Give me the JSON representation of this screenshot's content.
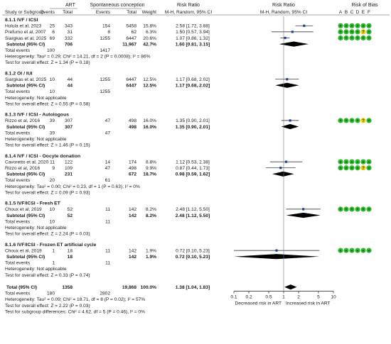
{
  "header": {
    "art": "ART",
    "spont": "Spontaneous conception",
    "rr_top": "Risk Ratio",
    "rr_top2": "Risk Ratio",
    "rob": "Risk of Bias",
    "study": "Study or Subgroup",
    "events1": "Events",
    "total1": "Total",
    "events2": "Events",
    "total2": "Total",
    "weight": "Weight",
    "mh1": "M-H, Random, 95% CI",
    "mh2": "M-H, Random, 95% CI",
    "rob_letters": [
      "A",
      "B",
      "C",
      "D",
      "E",
      "F"
    ]
  },
  "chart_data": {
    "type": "forest",
    "axis": {
      "scale": "log",
      "ticks": [
        "0.1",
        "0.2",
        "0.5",
        "1",
        "2",
        "5",
        "10"
      ],
      "tick_values": [
        0.1,
        0.2,
        0.5,
        1,
        2,
        5,
        10
      ],
      "label_left": "Decreased risk in ART",
      "label_right": "Increased risk in ART"
    },
    "colors": {
      "low": "#2eb82e",
      "unclear": "#f2d000",
      "high": "#e02020",
      "marker": "#1f3f9f",
      "diamond": "#000000"
    },
    "subgroups": [
      {
        "title": "8.1.1 IVF / ICSI",
        "studies": [
          {
            "name": "Hulula et al, 2023",
            "e1": "25",
            "t1": "343",
            "e2": "154",
            "t2": "5458",
            "weight": "15.8%",
            "ci": "2.58 [1.72, 3.88]",
            "rr": 2.58,
            "lo": 1.72,
            "hi": 3.88,
            "rob": [
              "+",
              "+",
              "+",
              "+",
              "+",
              "+"
            ]
          },
          {
            "name": "Prefumo et al, 2007",
            "e1": "6",
            "t1": "31",
            "e2": "8",
            "t2": "62",
            "weight": "6.3%",
            "ci": "1.50 [0.57, 3.94]",
            "rr": 1.5,
            "lo": 0.57,
            "hi": 3.94,
            "rob": [
              "+",
              "+",
              "+",
              "+",
              "?",
              "+"
            ]
          },
          {
            "name": "Siargkas et al, 2025",
            "e1": "69",
            "t1": "332",
            "e2": "1255",
            "t2": "6447",
            "weight": "20.6%",
            "ci": "1.07 [0.86, 1.32]",
            "rr": 1.07,
            "lo": 0.86,
            "hi": 1.32,
            "rob": [
              "+",
              "+",
              "+",
              "+",
              "+",
              "+"
            ]
          }
        ],
        "subtotal": {
          "label": "Subtotal (95% CI)",
          "t1": "706",
          "t2": "11,967",
          "weight": "42.7%",
          "ci": "1.60 [0.81, 3.15]",
          "rr": 1.6,
          "lo": 0.81,
          "hi": 3.15
        },
        "events": {
          "label": "Total events",
          "e1": "100",
          "e2": "1417"
        },
        "het": "Heterogeneity: Tau² = 0.29; Chi² = 14.21, df = 2 (P = 0.0008); I² = 86%",
        "test": "Test for overall effect: Z = 1.34 (P = 0.18)"
      },
      {
        "title": "8.1.2 OI / IUI",
        "studies": [
          {
            "name": "Siargkas et al, 2025",
            "e1": "10",
            "t1": "44",
            "e2": "1255",
            "t2": "6447",
            "weight": "12.5%",
            "ci": "1.17 [0.68, 2.02]",
            "rr": 1.17,
            "lo": 0.68,
            "hi": 2.02,
            "rob": []
          }
        ],
        "subtotal": {
          "label": "Subtotal (95% CI)",
          "t1": "44",
          "t2": "6447",
          "weight": "12.5%",
          "ci": "1.17 [0.68, 2.02]",
          "rr": 1.17,
          "lo": 0.68,
          "hi": 2.02
        },
        "events": {
          "label": "Total events",
          "e1": "10",
          "e2": "1255"
        },
        "het": "Heterogeneity: Not applicable",
        "test": "Test for overall effect: Z = 0.55 (P = 0.58)"
      },
      {
        "title": "8.1.3 IVF / ICSI - Autologous",
        "studies": [
          {
            "name": "Rizzo et al, 2016",
            "e1": "39",
            "t1": "307",
            "e2": "47",
            "t2": "498",
            "weight": "16.0%",
            "ci": "1.35 [0.90, 2.01]",
            "rr": 1.35,
            "lo": 0.9,
            "hi": 2.01,
            "rob": [
              "+",
              "+",
              "+",
              "+",
              "?",
              "+"
            ]
          }
        ],
        "subtotal": {
          "label": "Subtotal (95% CI)",
          "t1": "307",
          "t2": "498",
          "weight": "16.0%",
          "ci": "1.35 [0.90, 2.01]",
          "rr": 1.35,
          "lo": 0.9,
          "hi": 2.01
        },
        "events": {
          "label": "Total events",
          "e1": "39",
          "e2": "47"
        },
        "het": "Heterogeneity: Not applicable",
        "test": "Test for overall effect: Z = 1.46 (P = 0.15)"
      },
      {
        "title": "8.1.4 IVF / ICSI - Oocyte donation",
        "studies": [
          {
            "name": "Cavoretto et al, 2020",
            "e1": "11",
            "t1": "122",
            "e2": "14",
            "t2": "174",
            "weight": "8.8%",
            "ci": "1.12 [0.53, 2.38]",
            "rr": 1.12,
            "lo": 0.53,
            "hi": 2.38,
            "rob": [
              "+",
              "+",
              "+",
              "+",
              "+",
              "+"
            ]
          },
          {
            "name": "Rizzo et al, 2016",
            "e1": "9",
            "t1": "109",
            "e2": "47",
            "t2": "498",
            "weight": "9.9%",
            "ci": "0.87 [0.44, 1.73]",
            "rr": 0.87,
            "lo": 0.44,
            "hi": 1.73,
            "rob": [
              "+",
              "+",
              "+",
              "+",
              "?",
              "+"
            ]
          }
        ],
        "subtotal": {
          "label": "Subtotal (95% CI)",
          "t1": "231",
          "t2": "672",
          "weight": "18.7%",
          "ci": "0.98 [0.59, 1.62]",
          "rr": 0.98,
          "lo": 0.59,
          "hi": 1.62
        },
        "events": {
          "label": "Total events",
          "e1": "20",
          "e2": "61"
        },
        "het": "Heterogeneity: Tau² = 0.00; Chi² = 0.23, df = 1 (P = 0.63); I² = 0%",
        "test": "Test for overall effect: Z = 0.09 (P = 0.93)"
      },
      {
        "title": "8.1.5 IVF/ICSI - Fresh ET",
        "studies": [
          {
            "name": "Choux et al, 2019",
            "e1": "10",
            "t1": "52",
            "e2": "11",
            "t2": "142",
            "weight": "8.2%",
            "ci": "2.48 [1.12, 5.50]",
            "rr": 2.48,
            "lo": 1.12,
            "hi": 5.5,
            "rob": [
              "+",
              "+",
              "+",
              "+",
              "+",
              "+"
            ]
          }
        ],
        "subtotal": {
          "label": "Subtotal (95% CI)",
          "t1": "52",
          "t2": "142",
          "weight": "8.2%",
          "ci": "2.48 [1.12, 5.50]",
          "rr": 2.48,
          "lo": 1.12,
          "hi": 5.5
        },
        "events": {
          "label": "Total events",
          "e1": "10",
          "e2": "11"
        },
        "het": "Heterogeneity: Not applicable",
        "test": "Test for overall effect: Z = 2.24 (P = 0.03)"
      },
      {
        "title": "8.1.6 IVF/ICSI - Frozen ET artificial cycle",
        "studies": [
          {
            "name": "Choux et al, 2019",
            "e1": "1",
            "t1": "18",
            "e2": "11",
            "t2": "142",
            "weight": "1.9%",
            "ci": "0.72 [0.10, 5.23]",
            "rr": 0.72,
            "lo": 0.1,
            "hi": 5.23,
            "rob": [
              "+",
              "+",
              "+",
              "+",
              "+",
              "+"
            ]
          }
        ],
        "subtotal": {
          "label": "Subtotal (95% CI)",
          "t1": "18",
          "t2": "142",
          "weight": "1.9%",
          "ci": "0.72 [0.10, 5.23]",
          "rr": 0.72,
          "lo": 0.1,
          "hi": 5.23
        },
        "events": {
          "label": "Total events",
          "e1": "1",
          "e2": "11"
        },
        "het": "Heterogeneity: Not applicable",
        "test": "Test for overall effect: Z = 0.33 (P = 0.74)"
      }
    ],
    "total": {
      "label": "Total (95% CI)",
      "t1": "1358",
      "t2": "19,868",
      "weight": "100.0%",
      "ci": "1.38 [1.04, 1.83]",
      "rr": 1.38,
      "lo": 1.04,
      "hi": 1.83
    },
    "total_events": {
      "label": "Total events",
      "e1": "180",
      "e2": "2802"
    },
    "footer": [
      "Heterogeneity: Tau² = 0.09; Chi² = 18.71, df = 8 (P = 0.02); I² = 57%",
      "Test for overall effect: Z = 2.22 (P = 0.03)",
      "Test for subgroup differences: Chi² = 4.62, df = 5 (P = 0.46), I² = 0%"
    ]
  }
}
